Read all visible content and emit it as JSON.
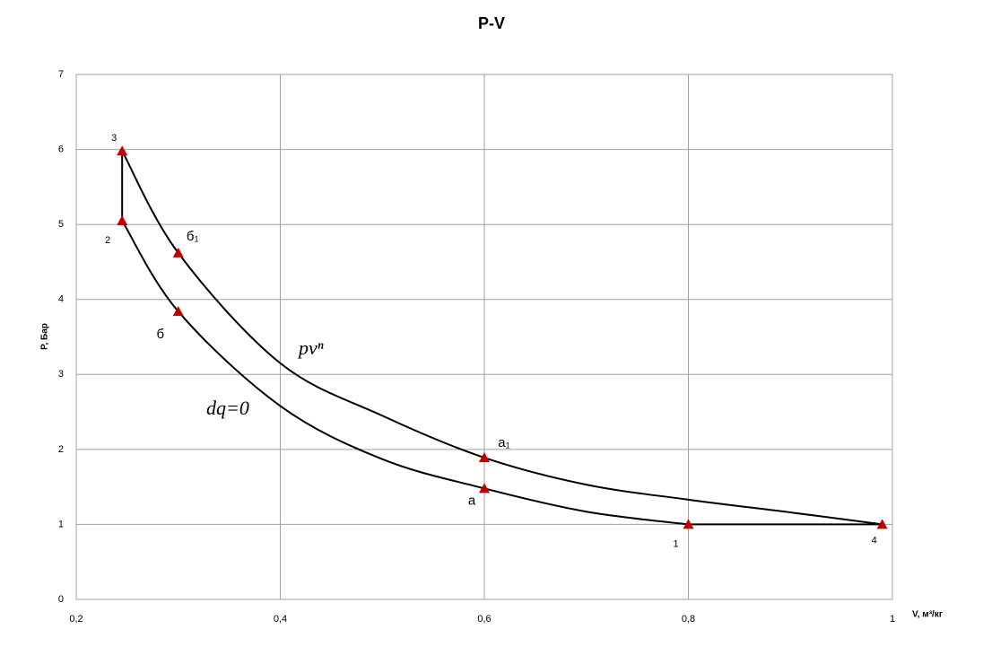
{
  "chart_data": {
    "type": "line",
    "title": "P-V",
    "x_label": "V, м³/кг",
    "y_label": "P, Бар",
    "xlim": [
      0.2,
      1
    ],
    "ylim": [
      0,
      7
    ],
    "xticks": [
      {
        "value": 0.2,
        "label": "0,2"
      },
      {
        "value": 0.4,
        "label": "0,4"
      },
      {
        "value": 0.6,
        "label": "0,6"
      },
      {
        "value": 0.8,
        "label": "0,8"
      },
      1
    ],
    "yticks": [
      0,
      1,
      2,
      3,
      4,
      5,
      6,
      7
    ],
    "grid": true,
    "series": [
      {
        "color": "#000000",
        "x": [
          0.245,
          0.3,
          0.4,
          0.5,
          0.6,
          0.7,
          0.8
        ],
        "values": [
          5.05,
          3.84,
          2.58,
          1.87,
          1.48,
          1.17,
          1.0
        ]
      },
      {
        "color": "#000000",
        "x": [
          0.245,
          0.3,
          0.4,
          0.5,
          0.6,
          0.7,
          0.8,
          0.9,
          0.99
        ],
        "values": [
          5.98,
          4.62,
          3.15,
          2.45,
          1.89,
          1.53,
          1.33,
          1.16,
          1.0
        ]
      },
      {
        "color": "#000000",
        "x": [
          0.245,
          0.245
        ],
        "values": [
          5.05,
          5.98
        ]
      },
      {
        "color": "#000000",
        "x": [
          0.8,
          0.99
        ],
        "values": [
          1.0,
          1.0
        ]
      }
    ],
    "points": {
      "color": "#c00000",
      "x": [
        0.245,
        0.245,
        0.3,
        0.3,
        0.6,
        0.6,
        0.8,
        0.99
      ],
      "values": [
        5.98,
        5.05,
        4.62,
        3.84,
        1.89,
        1.48,
        1.0,
        1.0
      ],
      "labels": [
        "3",
        "2",
        "б₁",
        "б",
        "a₁",
        "a",
        "1",
        "4"
      ]
    },
    "annotations": [
      "pvⁿ",
      "dq=0"
    ]
  }
}
